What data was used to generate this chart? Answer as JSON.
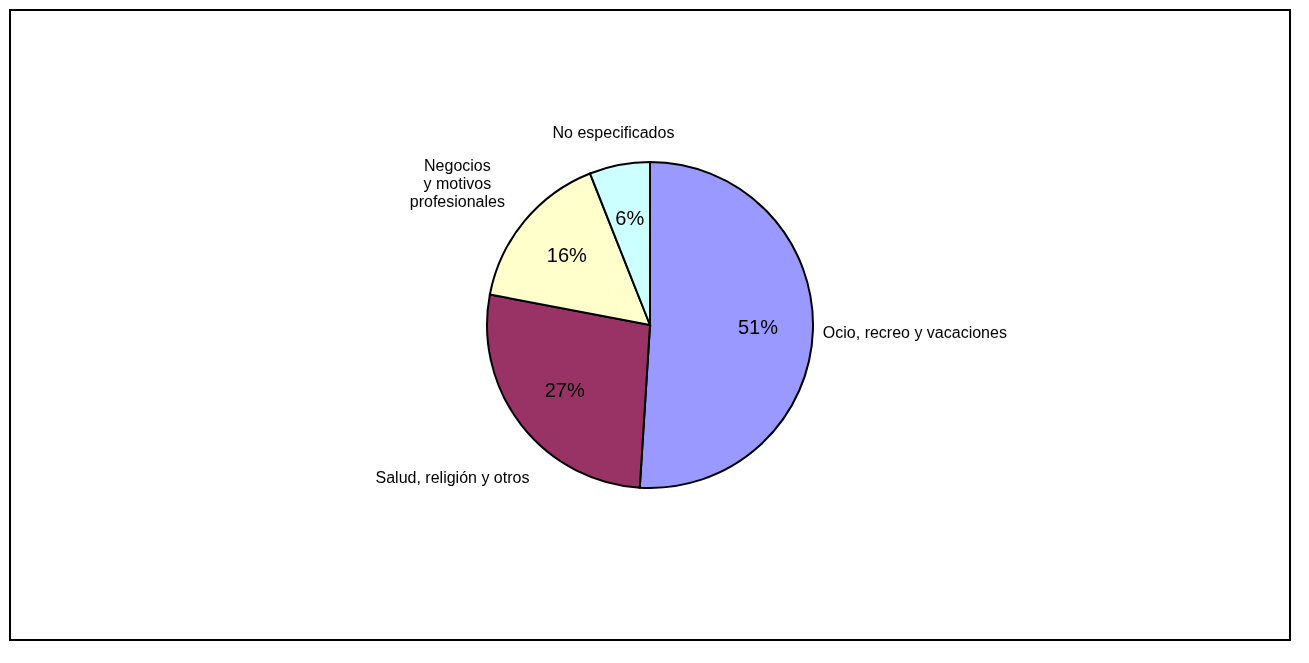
{
  "chart_data": {
    "type": "pie",
    "categories": [
      "Ocio, recreo y vacaciones",
      "Salud, religión y otros",
      "Negocios\ny motivos\nprofesionales",
      "No especificados"
    ],
    "values": [
      51,
      27,
      16,
      6
    ],
    "colors": [
      "#9999ff",
      "#993366",
      "#ffffcc",
      "#ccffff"
    ],
    "value_labels": [
      "51%",
      "27%",
      "16%",
      "6%"
    ]
  }
}
